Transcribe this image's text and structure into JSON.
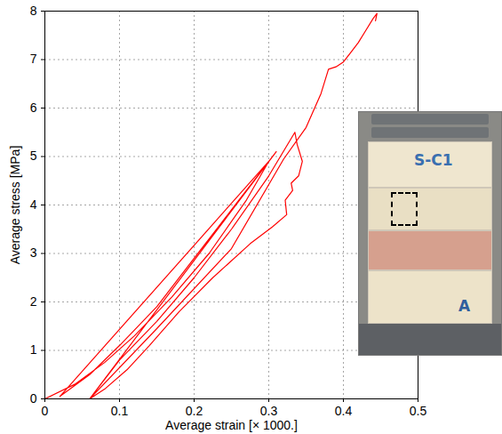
{
  "chart_data": {
    "type": "line",
    "x_label": "Average strain [× 1000.]",
    "y_label": "Average stress [MPa]",
    "x": [
      0,
      0.04,
      0.08,
      0.12,
      0.17,
      0.22,
      0.27,
      0.3,
      0.02,
      0.06,
      0.1,
      0.15,
      0.2,
      0.25,
      0.31,
      0.06,
      0.1,
      0.15,
      0.2,
      0.25,
      0.3,
      0.335,
      0.338,
      0.345,
      0.34,
      0.33,
      0.332,
      0.322,
      0.324,
      0.305,
      0.275,
      0.225,
      0.18,
      0.14,
      0.11,
      0.08,
      0.06,
      0.15,
      0.25,
      0.32,
      0.35,
      0.37,
      0.38,
      0.39,
      0.4,
      0.41,
      0.42,
      0.43,
      0.44,
      0.445,
      0.443
    ],
    "series": [
      {
        "color": "#ff0000",
        "values": [
          0,
          0.3,
          0.75,
          1.3,
          2.1,
          3.0,
          4.1,
          4.9,
          0.05,
          0.5,
          1.1,
          1.9,
          2.9,
          3.9,
          5.1,
          0.0,
          0.8,
          1.6,
          2.5,
          3.5,
          4.6,
          5.5,
          5.25,
          4.9,
          4.6,
          4.45,
          4.3,
          4.1,
          3.8,
          3.55,
          3.2,
          2.5,
          1.8,
          1.1,
          0.6,
          0.2,
          0.0,
          1.45,
          3.1,
          4.95,
          5.6,
          6.3,
          6.8,
          6.85,
          6.95,
          7.15,
          7.35,
          7.6,
          7.85,
          7.95,
          7.8
        ]
      }
    ],
    "xlim": [
      0,
      0.5
    ],
    "ylim": [
      0,
      8
    ],
    "xticks": [
      0,
      0.1,
      0.2,
      0.3,
      0.4,
      0.5
    ],
    "yticks": [
      0,
      1,
      2,
      3,
      4,
      5,
      6,
      7,
      8
    ],
    "grid": true,
    "annotations": [
      "S-C1",
      "A"
    ]
  }
}
